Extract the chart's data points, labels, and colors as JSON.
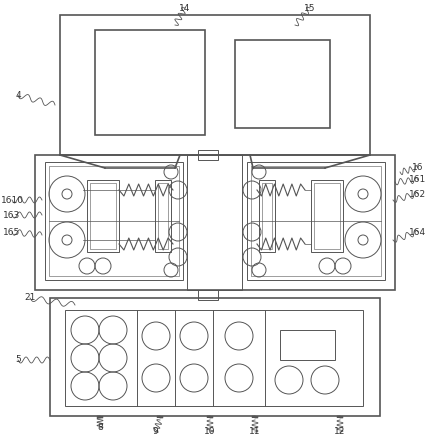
{
  "bg_color": "#ffffff",
  "line_color": "#555555",
  "line_width": 1.2,
  "thin_line": 0.7,
  "label_fontsize": 6.5,
  "label_color": "#333333",
  "fig_width": 4.29,
  "fig_height": 4.43,
  "dpi": 100
}
